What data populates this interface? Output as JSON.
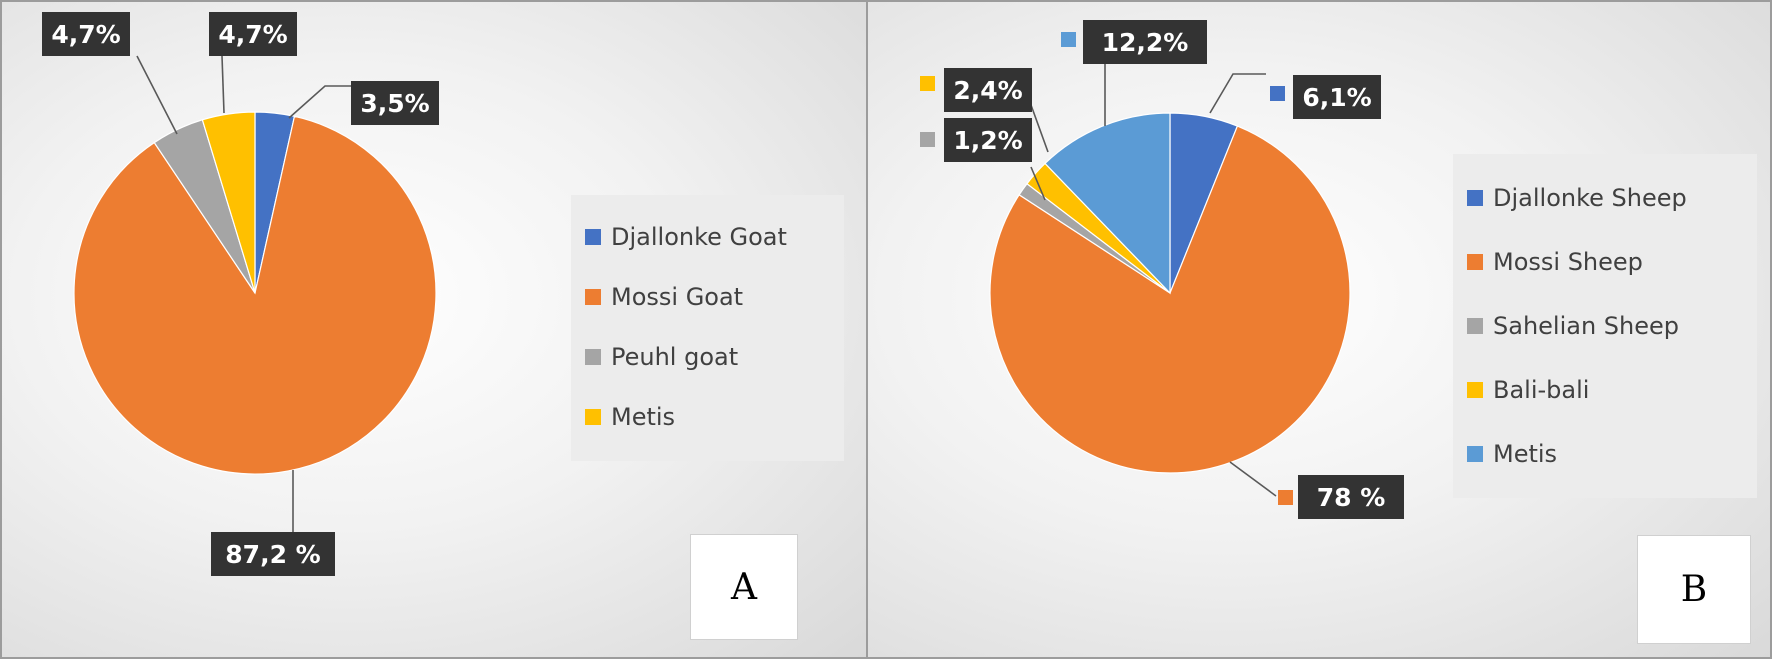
{
  "chart_data": [
    {
      "type": "pie",
      "panel_label": "A",
      "categories": [
        "Djallonke Goat",
        "Mossi Goat",
        "Peuhl goat",
        "Metis"
      ],
      "values": [
        3.5,
        87.2,
        4.7,
        4.7
      ],
      "data_labels": [
        "3,5%",
        "87,2 %",
        "4,7%",
        "4,7%"
      ],
      "colors": [
        "#4472c4",
        "#ed7d31",
        "#a5a5a5",
        "#ffc000"
      ],
      "legend_position": "right"
    },
    {
      "type": "pie",
      "panel_label": "B",
      "categories": [
        "Djallonke Sheep",
        "Mossi Sheep",
        "Sahelian Sheep",
        "Bali-bali",
        "Metis"
      ],
      "values": [
        6.1,
        78,
        1.2,
        2.4,
        12.2
      ],
      "data_labels": [
        "6,1%",
        "78 %",
        "1,2%",
        "2,4%",
        "12,2%"
      ],
      "colors": [
        "#4472c4",
        "#ed7d31",
        "#a5a5a5",
        "#ffc000",
        "#5b9bd5"
      ],
      "legend_position": "right"
    }
  ]
}
